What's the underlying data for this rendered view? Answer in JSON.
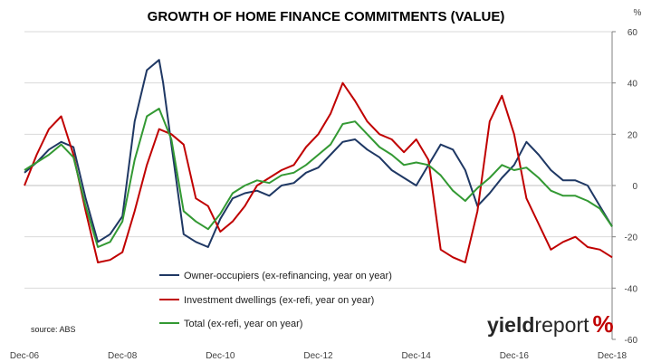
{
  "chart_data": {
    "type": "line",
    "title": "GROWTH OF HOME FINANCE COMMITMENTS (VALUE)",
    "y_unit_label": "%",
    "ylim": [
      -60,
      60
    ],
    "y_ticks": [
      60,
      40,
      20,
      0,
      -20,
      -40,
      -60
    ],
    "xlim": [
      "2006-12",
      "2018-12"
    ],
    "x_ticks": [
      {
        "date": "2006-12",
        "label": "Dec-06"
      },
      {
        "date": "2008-12",
        "label": "Dec-08"
      },
      {
        "date": "2010-12",
        "label": "Dec-10"
      },
      {
        "date": "2012-12",
        "label": "Dec-12"
      },
      {
        "date": "2014-12",
        "label": "Dec-14"
      },
      {
        "date": "2016-12",
        "label": "Dec-16"
      },
      {
        "date": "2018-12",
        "label": "Dec-18"
      }
    ],
    "grid": {
      "horizontal": true,
      "vertical": false
    },
    "legend_position": "bottom-center",
    "source": "source: ABS",
    "logo": {
      "bold": "yield",
      "light": "report",
      "symbol": "%"
    },
    "series": [
      {
        "name": "Owner-occupiers (ex-refinancing, year on year)",
        "color": "#1f3864",
        "points": [
          [
            "2006-12",
            5
          ],
          [
            "2007-03",
            9
          ],
          [
            "2007-06",
            14
          ],
          [
            "2007-09",
            17
          ],
          [
            "2007-12",
            15
          ],
          [
            "2008-03",
            -5
          ],
          [
            "2008-06",
            -22
          ],
          [
            "2008-09",
            -19
          ],
          [
            "2008-12",
            -12
          ],
          [
            "2009-03",
            25
          ],
          [
            "2009-06",
            45
          ],
          [
            "2009-09",
            49
          ],
          [
            "2009-10",
            40
          ],
          [
            "2009-12",
            16
          ],
          [
            "2010-03",
            -19
          ],
          [
            "2010-06",
            -22
          ],
          [
            "2010-09",
            -24
          ],
          [
            "2010-12",
            -13
          ],
          [
            "2011-03",
            -5
          ],
          [
            "2011-06",
            -3
          ],
          [
            "2011-09",
            -2
          ],
          [
            "2011-12",
            -4
          ],
          [
            "2012-03",
            0
          ],
          [
            "2012-06",
            1
          ],
          [
            "2012-09",
            5
          ],
          [
            "2012-12",
            7
          ],
          [
            "2013-03",
            12
          ],
          [
            "2013-06",
            17
          ],
          [
            "2013-09",
            18
          ],
          [
            "2013-12",
            14
          ],
          [
            "2014-03",
            11
          ],
          [
            "2014-06",
            6
          ],
          [
            "2014-09",
            3
          ],
          [
            "2014-12",
            0
          ],
          [
            "2015-03",
            8
          ],
          [
            "2015-06",
            16
          ],
          [
            "2015-09",
            14
          ],
          [
            "2015-12",
            6
          ],
          [
            "2016-03",
            -8
          ],
          [
            "2016-06",
            -3
          ],
          [
            "2016-09",
            3
          ],
          [
            "2016-12",
            8
          ],
          [
            "2017-03",
            17
          ],
          [
            "2017-06",
            12
          ],
          [
            "2017-09",
            6
          ],
          [
            "2017-12",
            2
          ],
          [
            "2018-03",
            2
          ],
          [
            "2018-06",
            0
          ],
          [
            "2018-09",
            -8
          ],
          [
            "2018-12",
            -16
          ]
        ]
      },
      {
        "name": "Investment dwellings (ex-refi, year on year)",
        "color": "#c00000",
        "points": [
          [
            "2006-12",
            0
          ],
          [
            "2007-03",
            12
          ],
          [
            "2007-06",
            22
          ],
          [
            "2007-09",
            27
          ],
          [
            "2007-12",
            12
          ],
          [
            "2008-03",
            -10
          ],
          [
            "2008-06",
            -30
          ],
          [
            "2008-09",
            -29
          ],
          [
            "2008-12",
            -26
          ],
          [
            "2009-03",
            -10
          ],
          [
            "2009-06",
            8
          ],
          [
            "2009-09",
            22
          ],
          [
            "2009-12",
            20
          ],
          [
            "2010-03",
            16
          ],
          [
            "2010-06",
            -5
          ],
          [
            "2010-09",
            -8
          ],
          [
            "2010-12",
            -18
          ],
          [
            "2011-03",
            -14
          ],
          [
            "2011-06",
            -8
          ],
          [
            "2011-09",
            0
          ],
          [
            "2011-12",
            3
          ],
          [
            "2012-03",
            6
          ],
          [
            "2012-06",
            8
          ],
          [
            "2012-09",
            15
          ],
          [
            "2012-12",
            20
          ],
          [
            "2013-03",
            28
          ],
          [
            "2013-06",
            40
          ],
          [
            "2013-09",
            33
          ],
          [
            "2013-12",
            25
          ],
          [
            "2014-03",
            20
          ],
          [
            "2014-06",
            18
          ],
          [
            "2014-09",
            13
          ],
          [
            "2014-12",
            18
          ],
          [
            "2015-03",
            10
          ],
          [
            "2015-06",
            -25
          ],
          [
            "2015-09",
            -28
          ],
          [
            "2015-12",
            -30
          ],
          [
            "2016-03",
            -10
          ],
          [
            "2016-06",
            25
          ],
          [
            "2016-09",
            35
          ],
          [
            "2016-12",
            20
          ],
          [
            "2017-03",
            -5
          ],
          [
            "2017-06",
            -15
          ],
          [
            "2017-09",
            -25
          ],
          [
            "2017-12",
            -22
          ],
          [
            "2018-03",
            -20
          ],
          [
            "2018-06",
            -24
          ],
          [
            "2018-09",
            -25
          ],
          [
            "2018-12",
            -28
          ]
        ]
      },
      {
        "name": "Total (ex-refi, year on year)",
        "color": "#339933",
        "points": [
          [
            "2006-12",
            6
          ],
          [
            "2007-03",
            9
          ],
          [
            "2007-06",
            12
          ],
          [
            "2007-09",
            16
          ],
          [
            "2007-12",
            11
          ],
          [
            "2008-03",
            -8
          ],
          [
            "2008-06",
            -24
          ],
          [
            "2008-09",
            -22
          ],
          [
            "2008-12",
            -14
          ],
          [
            "2009-03",
            10
          ],
          [
            "2009-06",
            27
          ],
          [
            "2009-09",
            30
          ],
          [
            "2009-12",
            18
          ],
          [
            "2010-03",
            -10
          ],
          [
            "2010-06",
            -14
          ],
          [
            "2010-09",
            -17
          ],
          [
            "2010-12",
            -11
          ],
          [
            "2011-03",
            -3
          ],
          [
            "2011-06",
            0
          ],
          [
            "2011-09",
            2
          ],
          [
            "2011-12",
            1
          ],
          [
            "2012-03",
            4
          ],
          [
            "2012-06",
            5
          ],
          [
            "2012-09",
            8
          ],
          [
            "2012-12",
            12
          ],
          [
            "2013-03",
            16
          ],
          [
            "2013-06",
            24
          ],
          [
            "2013-09",
            25
          ],
          [
            "2013-12",
            20
          ],
          [
            "2014-03",
            15
          ],
          [
            "2014-06",
            12
          ],
          [
            "2014-09",
            8
          ],
          [
            "2014-12",
            9
          ],
          [
            "2015-03",
            8
          ],
          [
            "2015-06",
            4
          ],
          [
            "2015-09",
            -2
          ],
          [
            "2015-12",
            -6
          ],
          [
            "2016-03",
            -1
          ],
          [
            "2016-06",
            3
          ],
          [
            "2016-09",
            8
          ],
          [
            "2016-12",
            6
          ],
          [
            "2017-03",
            7
          ],
          [
            "2017-06",
            3
          ],
          [
            "2017-09",
            -2
          ],
          [
            "2017-12",
            -4
          ],
          [
            "2018-03",
            -4
          ],
          [
            "2018-06",
            -6
          ],
          [
            "2018-09",
            -9
          ],
          [
            "2018-12",
            -16
          ]
        ]
      }
    ]
  }
}
